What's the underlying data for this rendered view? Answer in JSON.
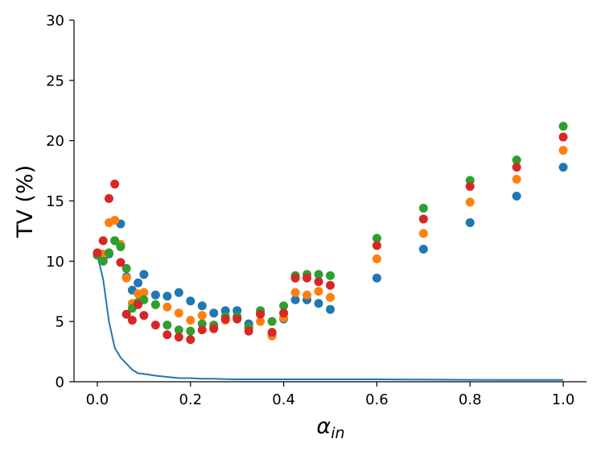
{
  "chart_data": {
    "type": "scatter",
    "title": "",
    "xlabel": "α",
    "xlabel_sub": "in",
    "ylabel": "TV (%)",
    "xlim": [
      -0.05,
      1.05
    ],
    "ylim": [
      0,
      30
    ],
    "x_ticks": [
      0.0,
      0.2,
      0.4,
      0.6,
      0.8,
      1.0
    ],
    "x_tick_labels": [
      "0.0",
      "0.2",
      "0.4",
      "0.6",
      "0.8",
      "1.0"
    ],
    "y_ticks": [
      0,
      5,
      10,
      15,
      20,
      25,
      30
    ],
    "y_tick_labels": [
      "0",
      "5",
      "10",
      "15",
      "20",
      "25",
      "30"
    ],
    "grid": false,
    "legend": "none",
    "x": [
      0.0,
      0.0125,
      0.025,
      0.0375,
      0.05,
      0.0625,
      0.075,
      0.0875,
      0.1,
      0.125,
      0.15,
      0.175,
      0.2,
      0.225,
      0.25,
      0.275,
      0.3,
      0.325,
      0.35,
      0.375,
      0.4,
      0.425,
      0.45,
      0.475,
      0.5,
      0.6,
      0.7,
      0.8,
      0.9,
      1.0
    ],
    "line": {
      "color": "#1f77b4",
      "values": [
        10.5,
        8.5,
        5.0,
        2.8,
        2.0,
        1.5,
        1.0,
        0.7,
        0.65,
        0.5,
        0.4,
        0.3,
        0.3,
        0.25,
        0.25,
        0.22,
        0.2,
        0.2,
        0.2,
        0.2,
        0.2,
        0.2,
        0.2,
        0.2,
        0.2,
        0.2,
        0.18,
        0.16,
        0.15,
        0.15
      ]
    },
    "series": [
      {
        "color": "#1f77b4",
        "values": [
          10.6,
          10.1,
          10.6,
          11.7,
          13.1,
          8.7,
          7.6,
          8.2,
          8.9,
          7.2,
          7.1,
          7.4,
          6.7,
          6.3,
          5.7,
          5.9,
          5.9,
          4.8,
          5.7,
          3.9,
          5.2,
          6.8,
          6.8,
          6.5,
          6.0,
          8.6,
          11.0,
          13.2,
          15.4,
          17.8
        ]
      },
      {
        "color": "#ff7f0e",
        "values": [
          10.6,
          10.6,
          13.2,
          13.4,
          11.4,
          8.6,
          6.5,
          7.3,
          7.4,
          6.4,
          6.2,
          5.7,
          5.1,
          5.5,
          4.5,
          5.1,
          5.3,
          4.5,
          5.0,
          3.8,
          5.3,
          7.4,
          7.2,
          7.5,
          7.0,
          10.2,
          12.3,
          14.9,
          16.8,
          19.2
        ]
      },
      {
        "color": "#2ca02c",
        "values": [
          10.5,
          10.0,
          10.7,
          11.7,
          11.2,
          9.4,
          6.1,
          6.6,
          6.8,
          6.4,
          4.7,
          4.3,
          4.2,
          4.8,
          4.7,
          5.4,
          5.4,
          4.5,
          5.9,
          5.0,
          6.3,
          8.8,
          8.9,
          8.9,
          8.8,
          11.9,
          14.4,
          16.7,
          18.4,
          21.2
        ]
      },
      {
        "color": "#d62728",
        "values": [
          10.7,
          11.7,
          15.2,
          16.4,
          9.9,
          5.6,
          5.1,
          6.4,
          5.5,
          4.7,
          3.9,
          3.7,
          3.5,
          4.3,
          4.4,
          5.2,
          5.2,
          4.2,
          5.6,
          4.1,
          5.7,
          8.6,
          8.6,
          8.3,
          8.0,
          11.3,
          13.5,
          16.2,
          17.8,
          20.3
        ]
      }
    ]
  }
}
